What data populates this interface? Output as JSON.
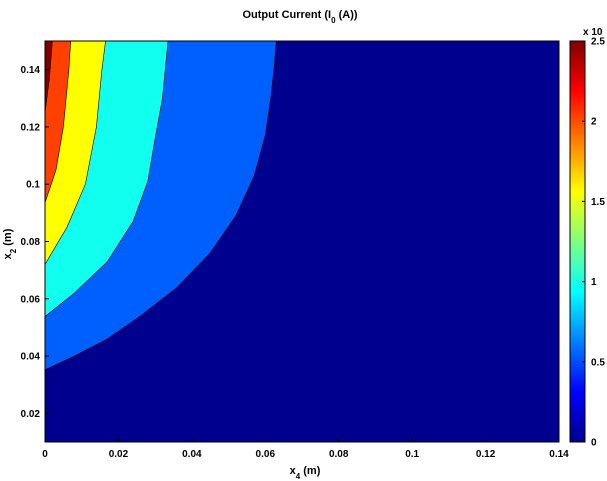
{
  "chart_data": {
    "type": "contour",
    "title": "Output Current (I₀ (A))",
    "title_parts": {
      "main": "Output Current (I",
      "sub": "0",
      "end": " (A))"
    },
    "xlabel": {
      "main": "x",
      "sub": "4",
      "end": " (m)"
    },
    "ylabel": {
      "main": "x",
      "sub": "2",
      "end": " (m)"
    },
    "xlim": [
      0,
      0.14
    ],
    "ylim": [
      0.01,
      0.15
    ],
    "xticks": [
      "0",
      "0.02",
      "0.04",
      "0.06",
      "0.08",
      "0.1",
      "0.12",
      "0.14"
    ],
    "xtick_values": [
      0,
      0.02,
      0.04,
      0.06,
      0.08,
      0.1,
      0.12,
      0.14
    ],
    "yticks": [
      "0.02",
      "0.04",
      "0.06",
      "0.08",
      "0.1",
      "0.12",
      "0.14"
    ],
    "ytick_values": [
      0.02,
      0.04,
      0.06,
      0.08,
      0.1,
      0.12,
      0.14
    ],
    "colorbar": {
      "ticks": [
        "0",
        "0.5",
        "1",
        "1.5",
        "2",
        "2.5"
      ],
      "tick_values": [
        0,
        0.5,
        1,
        1.5,
        2,
        2.5
      ],
      "range": [
        0,
        2.5
      ],
      "exponent_label": "x 10",
      "colormap": "jet"
    },
    "background_color": "#00008f",
    "levels": [
      {
        "level": 0.5,
        "fill": "#0060ff",
        "boundary": [
          [
            0.0,
            0.0352
          ],
          [
            0.008,
            0.04
          ],
          [
            0.017,
            0.046
          ],
          [
            0.026,
            0.054
          ],
          [
            0.036,
            0.064
          ],
          [
            0.045,
            0.076
          ],
          [
            0.052,
            0.089
          ],
          [
            0.057,
            0.103
          ],
          [
            0.06,
            0.117
          ],
          [
            0.0615,
            0.13
          ],
          [
            0.0625,
            0.142
          ],
          [
            0.063,
            0.15
          ]
        ]
      },
      {
        "level": 1.0,
        "fill": "#10ffef",
        "boundary": [
          [
            0.0,
            0.0538
          ],
          [
            0.008,
            0.062
          ],
          [
            0.017,
            0.073
          ],
          [
            0.024,
            0.087
          ],
          [
            0.028,
            0.101
          ],
          [
            0.03,
            0.116
          ],
          [
            0.032,
            0.13
          ],
          [
            0.0335,
            0.15
          ]
        ]
      },
      {
        "level": 1.5,
        "fill": "#ffff00",
        "boundary": [
          [
            0.0,
            0.072
          ],
          [
            0.006,
            0.085
          ],
          [
            0.011,
            0.1
          ],
          [
            0.014,
            0.12
          ],
          [
            0.0155,
            0.14
          ],
          [
            0.0165,
            0.15
          ]
        ]
      },
      {
        "level": 2.0,
        "fill": "#ff4000",
        "boundary": [
          [
            0.0,
            0.0935
          ],
          [
            0.003,
            0.105
          ],
          [
            0.005,
            0.12
          ],
          [
            0.0065,
            0.14
          ],
          [
            0.007,
            0.15
          ]
        ]
      },
      {
        "level": 2.5,
        "fill": "#800000",
        "boundary": [
          [
            0.0,
            0.125
          ],
          [
            0.0012,
            0.137
          ],
          [
            0.002,
            0.15
          ]
        ]
      }
    ]
  }
}
